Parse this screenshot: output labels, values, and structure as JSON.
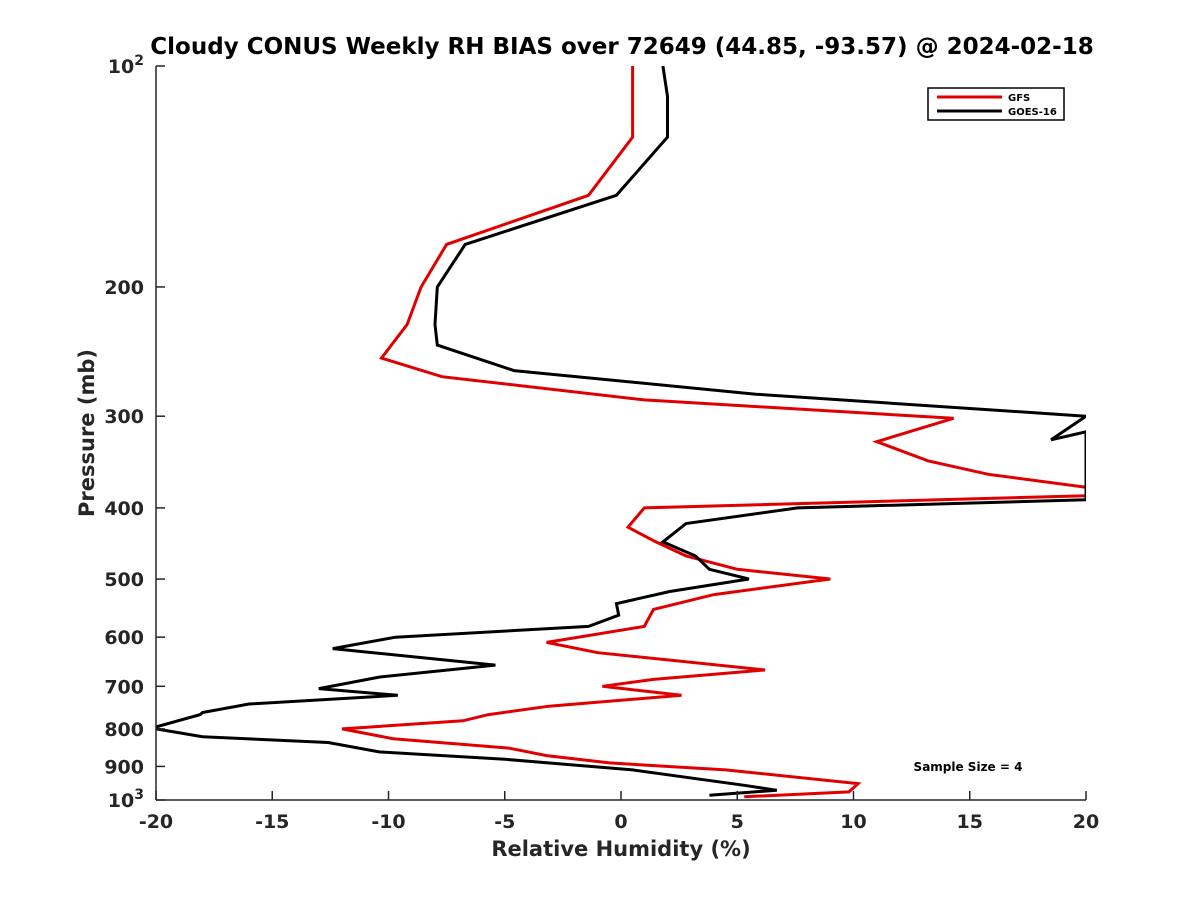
{
  "chart_data": {
    "type": "line",
    "title": "Cloudy CONUS Weekly RH BIAS over 72649 (44.85, -93.57) @ 2024-02-18",
    "xlabel": "Relative Humidity (%)",
    "ylabel": "Pressure (mb)",
    "xlim": [
      -20,
      20
    ],
    "ylim": [
      100,
      1000
    ],
    "y_scale": "log",
    "y_reversed": true,
    "x_ticks": [
      -20,
      -15,
      -10,
      -5,
      0,
      5,
      10,
      15,
      20
    ],
    "x_tick_labels": [
      "-20",
      "-15",
      "-10",
      "-5",
      "0",
      "5",
      "10",
      "15",
      "20"
    ],
    "y_ticks": [
      100,
      200,
      300,
      400,
      500,
      600,
      700,
      800,
      900,
      1000
    ],
    "y_tick_labels": [
      {
        "base": "10",
        "exp": "2"
      },
      {
        "base": "200",
        "exp": ""
      },
      {
        "base": "300",
        "exp": ""
      },
      {
        "base": "400",
        "exp": ""
      },
      {
        "base": "500",
        "exp": ""
      },
      {
        "base": "600",
        "exp": ""
      },
      {
        "base": "700",
        "exp": ""
      },
      {
        "base": "800",
        "exp": ""
      },
      {
        "base": "900",
        "exp": ""
      },
      {
        "base": "10",
        "exp": "3"
      }
    ],
    "grid": false,
    "legend_position": "top-right",
    "annotation": "Sample Size = 4",
    "series": [
      {
        "name": "GFS",
        "color": "#e00000",
        "points": [
          {
            "x": 0.5,
            "y": 100
          },
          {
            "x": 0.5,
            "y": 125
          },
          {
            "x": -1.4,
            "y": 150
          },
          {
            "x": -7.5,
            "y": 175
          },
          {
            "x": -8.6,
            "y": 200
          },
          {
            "x": -9.2,
            "y": 225
          },
          {
            "x": -10.3,
            "y": 250
          },
          {
            "x": -7.7,
            "y": 265
          },
          {
            "x": 1.0,
            "y": 285
          },
          {
            "x": 14.3,
            "y": 302
          },
          {
            "x": 11.0,
            "y": 325
          },
          {
            "x": 13.2,
            "y": 345
          },
          {
            "x": 15.8,
            "y": 360
          },
          {
            "x": 20.0,
            "y": 375
          },
          {
            "x": 20.0,
            "y": 385
          },
          {
            "x": 1.0,
            "y": 400
          },
          {
            "x": 0.3,
            "y": 425
          },
          {
            "x": 1.5,
            "y": 445
          },
          {
            "x": 2.8,
            "y": 465
          },
          {
            "x": 5.0,
            "y": 485
          },
          {
            "x": 9.0,
            "y": 500
          },
          {
            "x": 4.0,
            "y": 525
          },
          {
            "x": 1.4,
            "y": 550
          },
          {
            "x": 1.0,
            "y": 580
          },
          {
            "x": -3.2,
            "y": 610
          },
          {
            "x": -1.0,
            "y": 630
          },
          {
            "x": 6.2,
            "y": 665
          },
          {
            "x": 1.4,
            "y": 685
          },
          {
            "x": -0.8,
            "y": 700
          },
          {
            "x": 2.6,
            "y": 720
          },
          {
            "x": -3.1,
            "y": 745
          },
          {
            "x": -5.7,
            "y": 765
          },
          {
            "x": -6.8,
            "y": 780
          },
          {
            "x": -12.0,
            "y": 800
          },
          {
            "x": -9.8,
            "y": 825
          },
          {
            "x": -4.8,
            "y": 850
          },
          {
            "x": -3.2,
            "y": 870
          },
          {
            "x": -0.5,
            "y": 890
          },
          {
            "x": 4.5,
            "y": 910
          },
          {
            "x": 10.2,
            "y": 950
          },
          {
            "x": 9.8,
            "y": 975
          },
          {
            "x": 5.3,
            "y": 990
          }
        ]
      },
      {
        "name": "GOES-16",
        "color": "#000000",
        "points": [
          {
            "x": 1.8,
            "y": 100
          },
          {
            "x": 2.0,
            "y": 110
          },
          {
            "x": 2.0,
            "y": 125
          },
          {
            "x": -0.2,
            "y": 150
          },
          {
            "x": -6.7,
            "y": 175
          },
          {
            "x": -7.9,
            "y": 200
          },
          {
            "x": -8.0,
            "y": 225
          },
          {
            "x": -7.9,
            "y": 240
          },
          {
            "x": -4.6,
            "y": 260
          },
          {
            "x": 5.8,
            "y": 280
          },
          {
            "x": 20.0,
            "y": 300
          },
          {
            "x": 18.5,
            "y": 323
          },
          {
            "x": 20.0,
            "y": 315
          },
          {
            "x": 20.0,
            "y": 330
          },
          {
            "x": 20.0,
            "y": 390
          },
          {
            "x": 7.6,
            "y": 400
          },
          {
            "x": 2.8,
            "y": 420
          },
          {
            "x": 1.8,
            "y": 445
          },
          {
            "x": 3.2,
            "y": 465
          },
          {
            "x": 3.8,
            "y": 485
          },
          {
            "x": 5.5,
            "y": 500
          },
          {
            "x": 2.1,
            "y": 520
          },
          {
            "x": -0.2,
            "y": 540
          },
          {
            "x": -0.1,
            "y": 560
          },
          {
            "x": -1.4,
            "y": 580
          },
          {
            "x": -9.7,
            "y": 600
          },
          {
            "x": -12.4,
            "y": 622
          },
          {
            "x": -5.4,
            "y": 655
          },
          {
            "x": -10.4,
            "y": 680
          },
          {
            "x": -13.0,
            "y": 705
          },
          {
            "x": -9.6,
            "y": 720
          },
          {
            "x": -16.0,
            "y": 740
          },
          {
            "x": -18.0,
            "y": 760
          },
          {
            "x": -18.1,
            "y": 765
          },
          {
            "x": -20.0,
            "y": 795
          },
          {
            "x": -20.0,
            "y": 800
          },
          {
            "x": -18.0,
            "y": 820
          },
          {
            "x": -12.6,
            "y": 835
          },
          {
            "x": -10.4,
            "y": 860
          },
          {
            "x": -5.0,
            "y": 880
          },
          {
            "x": 0.5,
            "y": 910
          },
          {
            "x": 5.3,
            "y": 955
          },
          {
            "x": 6.7,
            "y": 970
          },
          {
            "x": 3.8,
            "y": 985
          }
        ]
      }
    ]
  }
}
